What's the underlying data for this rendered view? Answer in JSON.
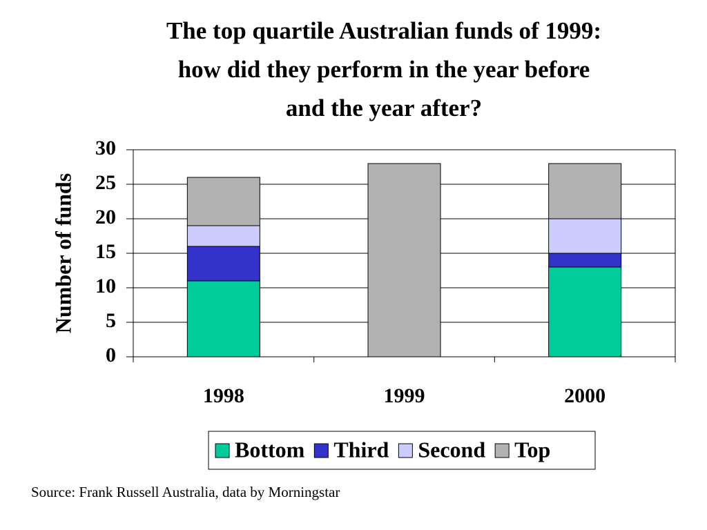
{
  "chart_data": {
    "type": "stacked-bar",
    "title": [
      "The top quartile Australian funds of 1999:",
      "how did they perform in the year before",
      "and the year after?"
    ],
    "y_label": "Number of funds",
    "categories": [
      "1998",
      "1999",
      "2000"
    ],
    "series": [
      {
        "name": "Bottom",
        "color": "#00cc99",
        "values": [
          11,
          0,
          13
        ]
      },
      {
        "name": "Third",
        "color": "#3333cc",
        "values": [
          5,
          0,
          2
        ]
      },
      {
        "name": "Second",
        "color": "#ccccff",
        "values": [
          3,
          0,
          5
        ]
      },
      {
        "name": "Top",
        "color": "#b2b2b2",
        "values": [
          7,
          28,
          8
        ]
      }
    ],
    "ylim": [
      0,
      30
    ],
    "yticks": [
      0,
      5,
      10,
      15,
      20,
      25,
      30
    ],
    "grid": true,
    "legend": "bottom",
    "source": "Source: Frank Russell Australia, data by Morningstar"
  }
}
